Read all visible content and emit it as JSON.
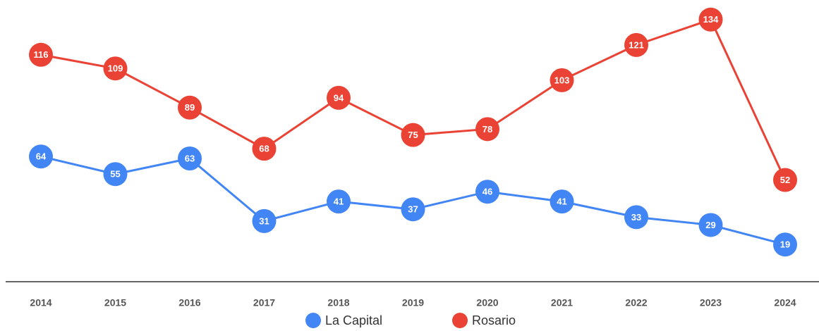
{
  "chart_data": {
    "type": "line",
    "categories": [
      "2014",
      "2015",
      "2016",
      "2017",
      "2018",
      "2019",
      "2020",
      "2021",
      "2022",
      "2023",
      "2024"
    ],
    "series": [
      {
        "name": "La Capital",
        "color": "#4285f4",
        "values": [
          64,
          55,
          63,
          31,
          41,
          37,
          46,
          41,
          33,
          29,
          19
        ]
      },
      {
        "name": "Rosario",
        "color": "#ea4335",
        "values": [
          116,
          109,
          89,
          68,
          94,
          75,
          78,
          103,
          121,
          134,
          52
        ]
      }
    ],
    "ylim": [
      0,
      144
    ],
    "legend": "bottom",
    "data_labels": true
  }
}
